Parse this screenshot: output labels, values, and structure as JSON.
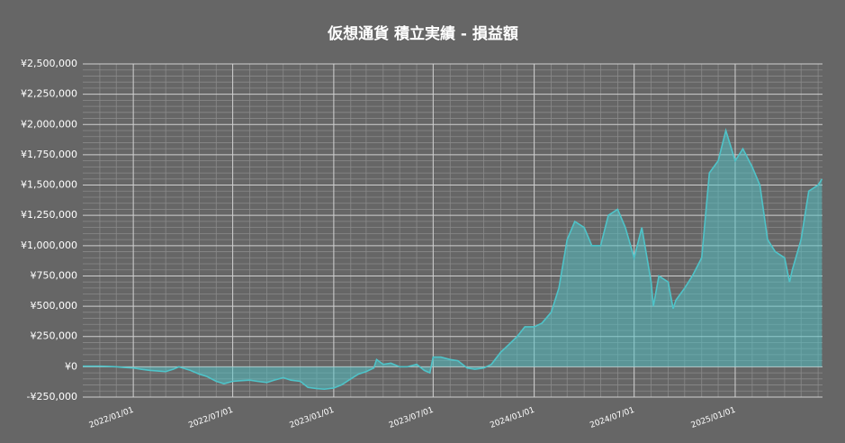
{
  "chart_data": {
    "type": "area",
    "title": "仮想通貨 積立実績 - 損益額",
    "x": [
      "2021/10/01",
      "2021/10/15",
      "2021/11/01",
      "2021/11/15",
      "2021/12/01",
      "2021/12/15",
      "2022/01/01",
      "2022/01/15",
      "2022/02/01",
      "2022/02/15",
      "2022/03/01",
      "2022/03/15",
      "2022/03/25",
      "2022/04/01",
      "2022/04/15",
      "2022/05/01",
      "2022/05/15",
      "2022/06/01",
      "2022/06/15",
      "2022/07/01",
      "2022/07/15",
      "2022/08/01",
      "2022/08/15",
      "2022/09/01",
      "2022/09/15",
      "2022/10/01",
      "2022/10/15",
      "2022/11/01",
      "2022/11/15",
      "2022/12/01",
      "2022/12/15",
      "2023/01/01",
      "2023/01/15",
      "2023/02/01",
      "2023/02/15",
      "2023/03/01",
      "2023/03/15",
      "2023/03/20",
      "2023/04/01",
      "2023/04/15",
      "2023/05/01",
      "2023/05/15",
      "2023/06/01",
      "2023/06/15",
      "2023/06/25",
      "2023/07/01",
      "2023/07/15",
      "2023/08/01",
      "2023/08/15",
      "2023/09/01",
      "2023/09/15",
      "2023/10/01",
      "2023/10/15",
      "2023/11/01",
      "2023/11/15",
      "2023/12/01",
      "2023/12/15",
      "2024/01/01",
      "2024/01/15",
      "2024/02/01",
      "2024/02/15",
      "2024/03/01",
      "2024/03/15",
      "2024/04/01",
      "2024/04/15",
      "2024/05/01",
      "2024/05/15",
      "2024/06/01",
      "2024/06/15",
      "2024/07/01",
      "2024/07/15",
      "2024/08/01",
      "2024/08/05",
      "2024/08/15",
      "2024/09/01",
      "2024/09/10",
      "2024/09/15",
      "2024/10/01",
      "2024/10/15",
      "2024/11/01",
      "2024/11/15",
      "2024/12/01",
      "2024/12/15",
      "2025/01/01",
      "2025/01/15",
      "2025/02/01",
      "2025/02/15",
      "2025/03/01",
      "2025/03/15",
      "2025/04/01",
      "2025/04/10",
      "2025/04/15",
      "2025/05/01",
      "2025/05/15",
      "2025/06/01",
      "2025/06/08"
    ],
    "values": [
      5000,
      5000,
      5000,
      3000,
      0,
      -5000,
      -10000,
      -20000,
      -30000,
      -35000,
      -40000,
      -20000,
      0,
      -10000,
      -30000,
      -60000,
      -80000,
      -120000,
      -140000,
      -120000,
      -115000,
      -110000,
      -120000,
      -130000,
      -110000,
      -90000,
      -110000,
      -120000,
      -170000,
      -180000,
      -185000,
      -175000,
      -150000,
      -100000,
      -60000,
      -40000,
      -10000,
      60000,
      20000,
      30000,
      0,
      0,
      20000,
      -30000,
      -50000,
      80000,
      80000,
      60000,
      50000,
      -10000,
      -20000,
      -10000,
      20000,
      120000,
      180000,
      250000,
      330000,
      330000,
      360000,
      450000,
      650000,
      1050000,
      1200000,
      1150000,
      1000000,
      1000000,
      1250000,
      1300000,
      1150000,
      900000,
      1150000,
      700000,
      500000,
      750000,
      700000,
      480000,
      550000,
      650000,
      750000,
      900000,
      1600000,
      1700000,
      1950000,
      1700000,
      1800000,
      1650000,
      1500000,
      1050000,
      950000,
      900000,
      700000,
      800000,
      1050000,
      1450000,
      1500000,
      1550000
    ],
    "color": "#4fc3c8",
    "xlim": [
      "2021/10/01",
      "2025/06/09"
    ],
    "xticks": [
      "2022/01/01",
      "2022/07/01",
      "2023/01/01",
      "2023/07/01",
      "2024/01/01",
      "2024/07/01",
      "2025/01/01"
    ],
    "ylim": [
      -250000,
      2500000
    ],
    "yticks": [
      {
        "value": -250000,
        "label": "-¥250,000"
      },
      {
        "value": 0,
        "label": "¥0"
      },
      {
        "value": 250000,
        "label": "¥250,000"
      },
      {
        "value": 500000,
        "label": "¥500,000"
      },
      {
        "value": 750000,
        "label": "¥750,000"
      },
      {
        "value": 1000000,
        "label": "¥1,000,000"
      },
      {
        "value": 1250000,
        "label": "¥1,250,000"
      },
      {
        "value": 1500000,
        "label": "¥1,500,000"
      },
      {
        "value": 1750000,
        "label": "¥1,750,000"
      },
      {
        "value": 2000000,
        "label": "¥2,000,000"
      },
      {
        "value": 2250000,
        "label": "¥2,250,000"
      },
      {
        "value": 2500000,
        "label": "¥2,500,000"
      }
    ],
    "grid": true
  }
}
